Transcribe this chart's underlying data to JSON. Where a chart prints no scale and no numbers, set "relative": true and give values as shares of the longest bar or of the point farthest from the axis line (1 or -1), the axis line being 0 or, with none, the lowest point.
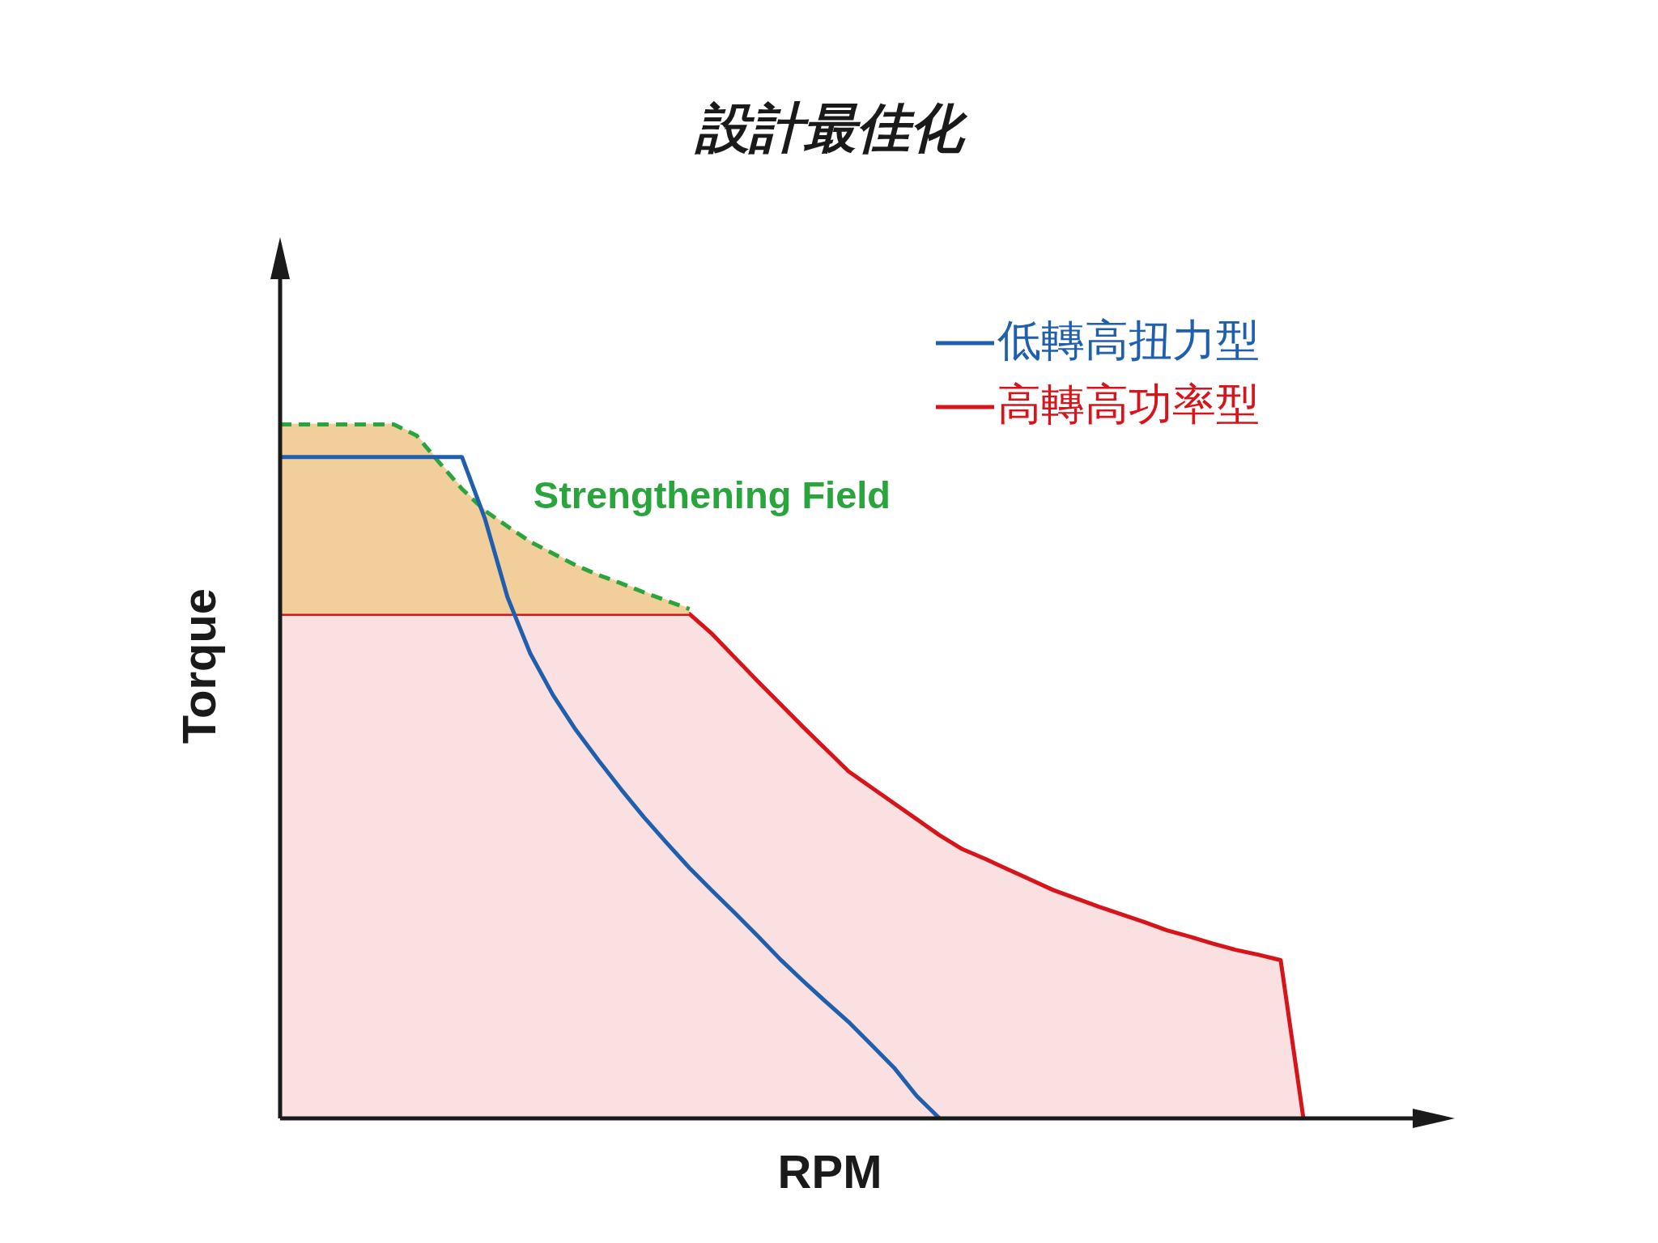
{
  "chart_data": {
    "type": "line",
    "title": "設計最佳化",
    "xlabel": "RPM",
    "ylabel": "Torque",
    "relative": true,
    "legend": "top right",
    "categories": [
      null,
      null,
      null,
      null,
      null,
      null,
      null,
      null,
      null,
      null,
      null,
      null,
      null,
      null,
      null,
      null,
      null,
      null,
      null,
      null,
      null,
      null,
      null,
      null,
      null,
      null,
      null,
      null,
      null,
      null,
      null,
      null,
      null,
      null,
      null,
      null,
      null,
      null,
      null,
      null,
      null,
      null,
      null,
      null,
      null,
      null
    ],
    "series": [
      {
        "name": "低轉高扭力型",
        "type": "line",
        "color": "#1f5fae",
        "values": [
          0.953,
          0.953,
          0.953,
          0.953,
          0.953,
          0.953,
          0.953,
          0.953,
          0.953,
          0.865,
          0.751,
          0.67,
          0.61,
          0.56,
          0.516,
          0.474,
          0.434,
          0.397,
          0.361,
          0.328,
          0.296,
          0.263,
          0.229,
          0.198,
          0.168,
          0.139,
          0.106,
          0.073,
          0.032,
          0,
          null,
          null,
          null,
          null,
          null,
          null,
          null,
          null,
          null,
          null,
          null,
          null,
          null,
          null,
          null,
          null
        ]
      },
      {
        "name": "高轉高功率型",
        "type": "area",
        "color": "#d7141a",
        "values": [
          0.727,
          0.727,
          0.727,
          0.727,
          0.727,
          0.727,
          0.727,
          0.727,
          0.727,
          0.727,
          0.727,
          0.727,
          0.727,
          0.727,
          0.727,
          0.727,
          0.727,
          0.727,
          0.727,
          0.698,
          0.664,
          0.63,
          0.597,
          0.564,
          0.532,
          0.5,
          0.477,
          0.454,
          0.431,
          0.408,
          0.388,
          0.374,
          0.359,
          0.344,
          0.329,
          0.317,
          0.305,
          0.294,
          0.283,
          0.271,
          0.262,
          0.252,
          0.243,
          0.236,
          0.228,
          0
        ]
      },
      {
        "name": "Strengthening Field",
        "type": "line",
        "color": "#2aa43c",
        "line_style": "dashed",
        "values": [
          1,
          1,
          1,
          1,
          1,
          1,
          0.984,
          0.945,
          0.907,
          0.876,
          0.853,
          0.831,
          0.814,
          0.797,
          0.783,
          0.771,
          0.758,
          0.746,
          0.734,
          null,
          null,
          null,
          null,
          null,
          null,
          null,
          null,
          null,
          null,
          null,
          null,
          null,
          null,
          null,
          null,
          null,
          null,
          null,
          null,
          null,
          null,
          null,
          null,
          null,
          null,
          null
        ]
      },
      {
        "type": "area",
        "color": "#f2cf9a",
        "values": [
          1,
          1,
          1,
          1,
          1,
          1,
          0.984,
          0.945,
          0.907,
          0.876,
          0.853,
          0.831,
          0.814,
          0.797,
          0.783,
          0.771,
          0.758,
          0.746,
          0.734,
          null,
          null,
          null,
          null,
          null,
          null,
          null,
          null,
          null,
          null,
          null,
          null,
          null,
          null,
          null,
          null,
          null,
          null,
          null,
          null,
          null,
          null,
          null,
          null,
          null,
          null,
          null
        ]
      }
    ]
  }
}
